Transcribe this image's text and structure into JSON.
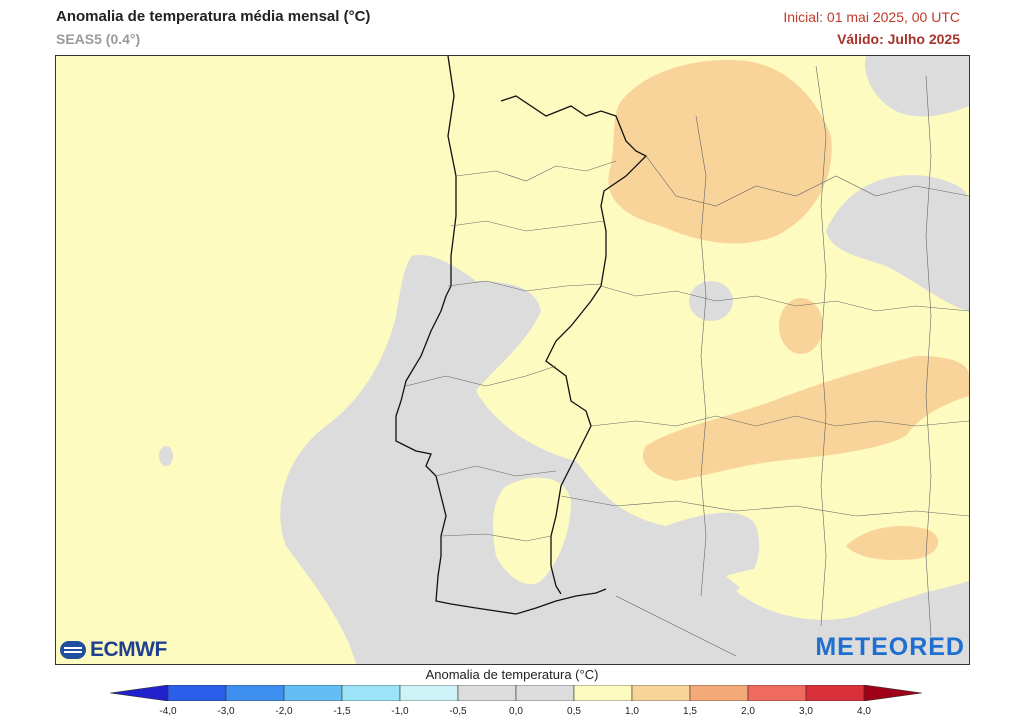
{
  "header": {
    "title": "Anomalia de temperatura média mensal (°C)",
    "model": "SEAS5 (0.4°)",
    "initial": "Inicial: 01 mai 2025, 00 UTC",
    "valid": "Válido: Julho 2025"
  },
  "map": {
    "region": "Portugal / Iberian Peninsula west",
    "base_color": "#fdfbc0",
    "near_zero_color": "#dcdcdc",
    "warm_color": "#f8d49a"
  },
  "logos": {
    "left": "ECMWF",
    "right": "METEORED"
  },
  "colorbar": {
    "title": "Anomalia de temperatura (°C)",
    "ticks": [
      "-4,0",
      "-3,0",
      "-2,0",
      "-1,5",
      "-1,0",
      "-0,5",
      "0,0",
      "0,5",
      "1,0",
      "1,5",
      "2,0",
      "3,0",
      "4,0"
    ],
    "colors": [
      "#2222cc",
      "#2a5ee8",
      "#3f8ff0",
      "#64bef5",
      "#9ce3f7",
      "#cdf3f7",
      "#dcdcdc",
      "#dcdcdc",
      "#fdfbc0",
      "#f8d49a",
      "#f4a978",
      "#ef6b5e",
      "#d9303a",
      "#a00018"
    ]
  }
}
